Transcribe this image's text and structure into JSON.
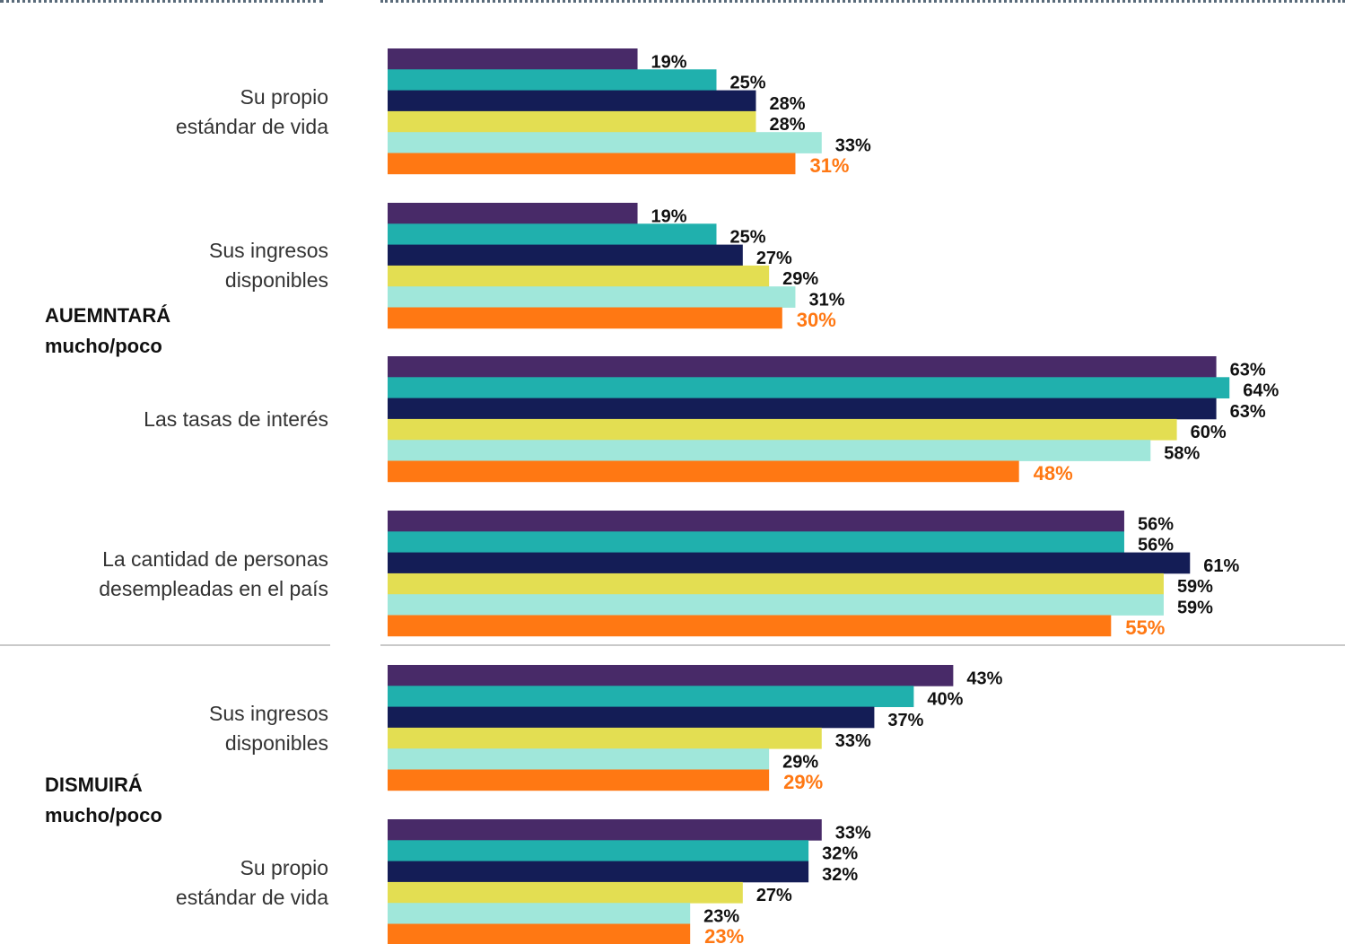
{
  "chart_data": {
    "type": "bar",
    "orientation": "horizontal",
    "grid": false,
    "legend": "none",
    "xlim": [
      0,
      64
    ],
    "series_colors": [
      "#482a68",
      "#20b0ad",
      "#141d56",
      "#e3de52",
      "#a0e7da",
      "#ff7813"
    ],
    "highlight_label_color": "#ff7813",
    "value_suffix": "%",
    "sections": [
      {
        "label_line1": "AUEMNTARÁ",
        "label_line2": "mucho/poco",
        "groups": [
          {
            "label_line1": "Su propio",
            "label_line2": "estándar de vida",
            "values": [
              19,
              25,
              28,
              28,
              33,
              31
            ]
          },
          {
            "label_line1": "Sus ingresos",
            "label_line2": "disponibles",
            "values": [
              19,
              25,
              27,
              29,
              31,
              30
            ]
          },
          {
            "label_line1": "Las tasas de interés",
            "label_line2": "",
            "values": [
              63,
              64,
              63,
              60,
              58,
              48
            ]
          },
          {
            "label_line1": "La cantidad de personas",
            "label_line2": "desempleadas en el país",
            "values": [
              56,
              56,
              61,
              59,
              59,
              55
            ]
          }
        ]
      },
      {
        "label_line1": "DISMUIRÁ",
        "label_line2": "mucho/poco",
        "groups": [
          {
            "label_line1": "Sus ingresos",
            "label_line2": "disponibles",
            "values": [
              43,
              40,
              37,
              33,
              29,
              29
            ]
          },
          {
            "label_line1": "Su propio",
            "label_line2": "estándar de vida",
            "values": [
              33,
              32,
              32,
              27,
              23,
              23
            ]
          }
        ]
      }
    ]
  }
}
